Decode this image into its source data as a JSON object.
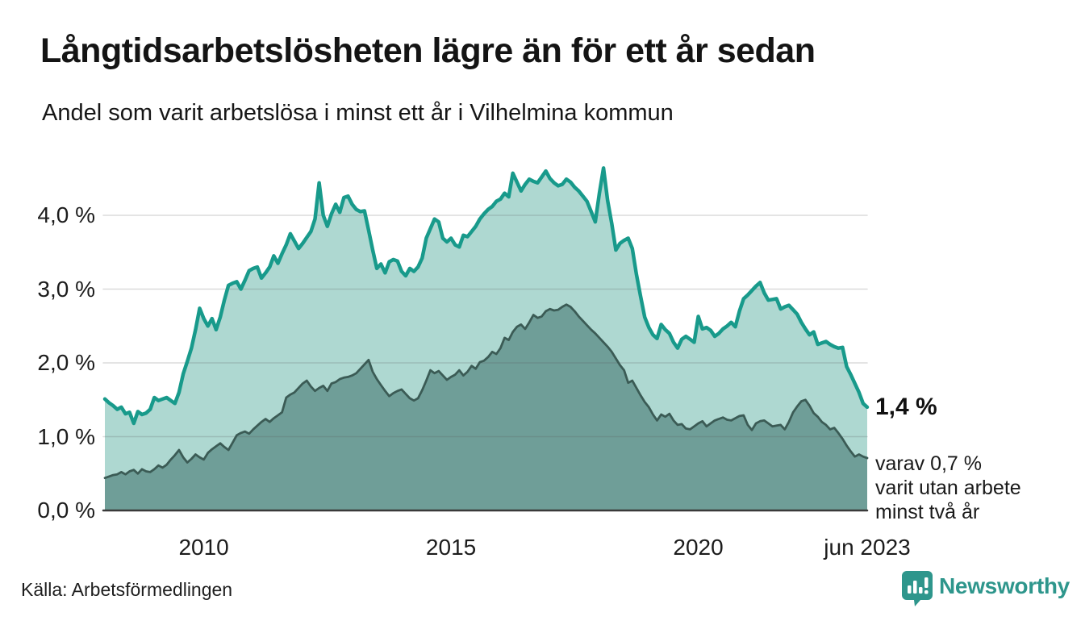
{
  "header": {
    "title": "Långtidsarbetslösheten lägre än för ett år sedan",
    "subtitle": "Andel som varit arbetslösa i minst ett år i Vilhelmina kommun"
  },
  "colors": {
    "series1_line": "#189a8b",
    "series1_fill": "#aed8d1",
    "series2_line": "#3b5b55",
    "series2_fill": "#6f9e98",
    "gridline": "rgba(90,90,90,0.22)",
    "baseline": "#3a3a3a",
    "text": "#1a1a1a",
    "logo": "#2e968c"
  },
  "chart_data": {
    "type": "area",
    "unit": "%",
    "frequency": "monthly",
    "x_start": "2008-01",
    "x_end": "2023-06",
    "ylim": [
      0,
      4.8
    ],
    "grid": "horizontal-only",
    "legend": "none",
    "yticks": [
      {
        "label": "0,0 %",
        "value": 0
      },
      {
        "label": "1,0 %",
        "value": 1
      },
      {
        "label": "2,0 %",
        "value": 2
      },
      {
        "label": "3,0 %",
        "value": 3
      },
      {
        "label": "4,0 %",
        "value": 4
      }
    ],
    "xticks": [
      {
        "label": "2010",
        "month_index": 24
      },
      {
        "label": "2015",
        "month_index": 84
      },
      {
        "label": "2020",
        "month_index": 144
      },
      {
        "label": "jun 2023",
        "month_index": 185
      }
    ],
    "series": [
      {
        "name": "Arbetslösa minst ett år",
        "latest_value": 1.4,
        "values": [
          1.51,
          1.46,
          1.42,
          1.37,
          1.4,
          1.31,
          1.33,
          1.18,
          1.34,
          1.3,
          1.32,
          1.37,
          1.53,
          1.49,
          1.51,
          1.53,
          1.49,
          1.45,
          1.6,
          1.85,
          2.02,
          2.2,
          2.45,
          2.74,
          2.6,
          2.5,
          2.6,
          2.45,
          2.62,
          2.85,
          3.05,
          3.08,
          3.1,
          3.0,
          3.12,
          3.25,
          3.28,
          3.3,
          3.15,
          3.22,
          3.3,
          3.45,
          3.35,
          3.48,
          3.6,
          3.75,
          3.65,
          3.55,
          3.62,
          3.7,
          3.78,
          3.95,
          4.44,
          4.0,
          3.85,
          4.02,
          4.15,
          4.04,
          4.24,
          4.26,
          4.15,
          4.08,
          4.05,
          4.06,
          3.8,
          3.53,
          3.28,
          3.34,
          3.22,
          3.37,
          3.4,
          3.38,
          3.24,
          3.18,
          3.28,
          3.24,
          3.3,
          3.42,
          3.69,
          3.82,
          3.95,
          3.91,
          3.69,
          3.64,
          3.69,
          3.6,
          3.57,
          3.73,
          3.71,
          3.78,
          3.85,
          3.95,
          4.02,
          4.08,
          4.12,
          4.19,
          4.22,
          4.3,
          4.25,
          4.57,
          4.45,
          4.33,
          4.42,
          4.49,
          4.46,
          4.44,
          4.52,
          4.6,
          4.5,
          4.44,
          4.4,
          4.42,
          4.49,
          4.45,
          4.38,
          4.33,
          4.26,
          4.19,
          4.05,
          3.91,
          4.3,
          4.64,
          4.2,
          3.89,
          3.53,
          3.62,
          3.66,
          3.69,
          3.55,
          3.2,
          2.9,
          2.62,
          2.48,
          2.38,
          2.33,
          2.52,
          2.45,
          2.4,
          2.28,
          2.2,
          2.32,
          2.36,
          2.32,
          2.28,
          2.63,
          2.46,
          2.48,
          2.44,
          2.36,
          2.4,
          2.46,
          2.5,
          2.55,
          2.49,
          2.7,
          2.87,
          2.92,
          2.98,
          3.04,
          3.09,
          2.95,
          2.85,
          2.86,
          2.87,
          2.73,
          2.76,
          2.78,
          2.72,
          2.66,
          2.55,
          2.46,
          2.38,
          2.42,
          2.25,
          2.27,
          2.29,
          2.25,
          2.22,
          2.2,
          2.21,
          1.95,
          1.84,
          1.72,
          1.6,
          1.45,
          1.4
        ]
      },
      {
        "name": "varav arbetslösa minst två år",
        "latest_value": 0.7,
        "values": [
          0.44,
          0.46,
          0.48,
          0.49,
          0.52,
          0.49,
          0.53,
          0.55,
          0.5,
          0.56,
          0.53,
          0.52,
          0.56,
          0.61,
          0.58,
          0.62,
          0.69,
          0.75,
          0.82,
          0.72,
          0.65,
          0.7,
          0.76,
          0.72,
          0.69,
          0.78,
          0.83,
          0.87,
          0.91,
          0.86,
          0.82,
          0.92,
          1.02,
          1.05,
          1.07,
          1.04,
          1.1,
          1.15,
          1.2,
          1.24,
          1.2,
          1.25,
          1.29,
          1.33,
          1.53,
          1.57,
          1.6,
          1.66,
          1.72,
          1.76,
          1.68,
          1.62,
          1.66,
          1.69,
          1.62,
          1.72,
          1.74,
          1.78,
          1.8,
          1.81,
          1.83,
          1.86,
          1.92,
          1.98,
          2.04,
          1.88,
          1.78,
          1.7,
          1.62,
          1.55,
          1.59,
          1.62,
          1.64,
          1.58,
          1.52,
          1.49,
          1.52,
          1.63,
          1.76,
          1.9,
          1.86,
          1.89,
          1.83,
          1.77,
          1.81,
          1.84,
          1.9,
          1.83,
          1.88,
          1.96,
          1.92,
          2.01,
          2.03,
          2.08,
          2.15,
          2.12,
          2.2,
          2.34,
          2.31,
          2.42,
          2.49,
          2.52,
          2.46,
          2.55,
          2.65,
          2.61,
          2.63,
          2.7,
          2.73,
          2.71,
          2.72,
          2.76,
          2.79,
          2.76,
          2.7,
          2.63,
          2.57,
          2.51,
          2.45,
          2.4,
          2.34,
          2.28,
          2.22,
          2.15,
          2.06,
          1.97,
          1.9,
          1.73,
          1.76,
          1.66,
          1.56,
          1.47,
          1.4,
          1.3,
          1.22,
          1.3,
          1.27,
          1.31,
          1.22,
          1.16,
          1.17,
          1.11,
          1.1,
          1.14,
          1.18,
          1.21,
          1.14,
          1.18,
          1.22,
          1.24,
          1.26,
          1.23,
          1.22,
          1.25,
          1.28,
          1.29,
          1.16,
          1.09,
          1.18,
          1.21,
          1.22,
          1.18,
          1.14,
          1.15,
          1.16,
          1.1,
          1.2,
          1.33,
          1.41,
          1.48,
          1.5,
          1.42,
          1.32,
          1.27,
          1.2,
          1.16,
          1.1,
          1.12,
          1.05,
          0.97,
          0.88,
          0.8,
          0.73,
          0.76,
          0.73,
          0.71
        ]
      }
    ]
  },
  "annotations": {
    "latest_value": "1,4 %",
    "detail_lines": [
      "varav 0,7 %",
      "varit utan arbete",
      "minst två år"
    ]
  },
  "footer": {
    "source": "Källa: Arbetsförmedlingen",
    "logo_text": "Newsworthy"
  }
}
